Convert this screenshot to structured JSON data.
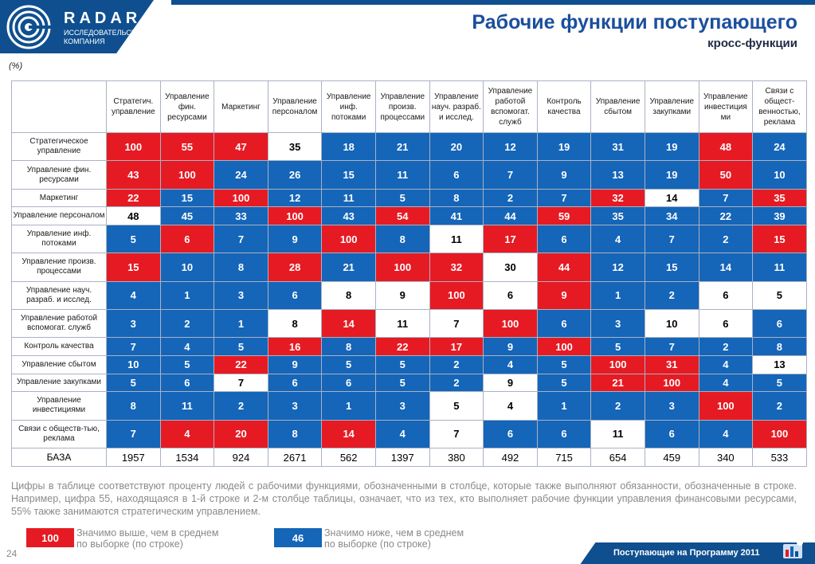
{
  "brand": {
    "name": "RADAR",
    "subtitle_line1": "ИССЛЕДОВАТЕЛЬСКАЯ",
    "subtitle_line2": "КОМПАНИЯ"
  },
  "title": "Рабочие функции поступающего",
  "subtitle": "кросс-функции",
  "unit": "(%)",
  "colors": {
    "above": "#e61a23",
    "below": "#1565b8",
    "neutral": "#ffffff",
    "brand": "#0f4f8f"
  },
  "columns": [
    "Стратегич. управление",
    "Управление фин. ресурсами",
    "Маркетинг",
    "Управление персоналом",
    "Управление инф. потоками",
    "Управление произв. процессами",
    "Управление науч. разраб. и исслед.",
    "Управление работой вспомогат. служб",
    "Контроль качества",
    "Управление сбытом",
    "Управление закупками",
    "Управление инвестиция ми",
    "Связи с общест-венностью, реклама"
  ],
  "rows": [
    {
      "label": "Стратегическое управление",
      "values": [
        "100",
        "55",
        "47",
        "35",
        "18",
        "21",
        "20",
        "12",
        "19",
        "31",
        "19",
        "48",
        "24"
      ],
      "status": [
        "h",
        "h",
        "h",
        "n",
        "l",
        "l",
        "l",
        "l",
        "l",
        "l",
        "l",
        "h",
        "l"
      ]
    },
    {
      "label": "Управление фин. ресурсами",
      "values": [
        "43",
        "100",
        "24",
        "26",
        "15",
        "11",
        "6",
        "7",
        "9",
        "13",
        "19",
        "50",
        "10"
      ],
      "status": [
        "h",
        "h",
        "l",
        "l",
        "l",
        "l",
        "l",
        "l",
        "l",
        "l",
        "l",
        "h",
        "l"
      ]
    },
    {
      "label": "Маркетинг",
      "values": [
        "22",
        "15",
        "100",
        "12",
        "11",
        "5",
        "8",
        "2",
        "7",
        "32",
        "14",
        "7",
        "35"
      ],
      "status": [
        "h",
        "l",
        "h",
        "l",
        "l",
        "l",
        "l",
        "l",
        "l",
        "h",
        "n",
        "l",
        "h"
      ]
    },
    {
      "label": "Управление персоналом",
      "values": [
        "48",
        "45",
        "33",
        "100",
        "43",
        "54",
        "41",
        "44",
        "59",
        "35",
        "34",
        "22",
        "39"
      ],
      "status": [
        "n",
        "l",
        "l",
        "h",
        "l",
        "h",
        "l",
        "l",
        "h",
        "l",
        "l",
        "l",
        "l"
      ]
    },
    {
      "label": "Управление инф. потоками",
      "values": [
        "5",
        "6",
        "7",
        "9",
        "100",
        "8",
        "11",
        "17",
        "6",
        "4",
        "7",
        "2",
        "15"
      ],
      "status": [
        "l",
        "h",
        "l",
        "l",
        "h",
        "l",
        "n",
        "h",
        "l",
        "l",
        "l",
        "l",
        "h"
      ]
    },
    {
      "label": "Управление произв. процессами",
      "values": [
        "15",
        "10",
        "8",
        "28",
        "21",
        "100",
        "32",
        "30",
        "44",
        "12",
        "15",
        "14",
        "11"
      ],
      "status": [
        "h",
        "l",
        "l",
        "h",
        "l",
        "h",
        "h",
        "n",
        "h",
        "l",
        "l",
        "l",
        "l"
      ]
    },
    {
      "label": "Управление науч. разраб. и исслед.",
      "values": [
        "4",
        "1",
        "3",
        "6",
        "8",
        "9",
        "100",
        "6",
        "9",
        "1",
        "2",
        "6",
        "5"
      ],
      "status": [
        "l",
        "l",
        "l",
        "l",
        "n",
        "n",
        "h",
        "n",
        "h",
        "l",
        "l",
        "n",
        "n"
      ]
    },
    {
      "label": "Управление работой вспомогат. служб",
      "values": [
        "3",
        "2",
        "1",
        "8",
        "14",
        "11",
        "7",
        "100",
        "6",
        "3",
        "10",
        "6",
        "6"
      ],
      "status": [
        "l",
        "l",
        "l",
        "n",
        "h",
        "n",
        "n",
        "h",
        "l",
        "l",
        "n",
        "n",
        "l"
      ]
    },
    {
      "label": "Контроль качества",
      "values": [
        "7",
        "4",
        "5",
        "16",
        "8",
        "22",
        "17",
        "9",
        "100",
        "5",
        "7",
        "2",
        "8"
      ],
      "status": [
        "l",
        "l",
        "l",
        "h",
        "l",
        "h",
        "h",
        "l",
        "h",
        "l",
        "l",
        "l",
        "l"
      ]
    },
    {
      "label": "Управление сбытом",
      "values": [
        "10",
        "5",
        "22",
        "9",
        "5",
        "5",
        "2",
        "4",
        "5",
        "100",
        "31",
        "4",
        "13"
      ],
      "status": [
        "l",
        "l",
        "h",
        "l",
        "l",
        "l",
        "l",
        "l",
        "l",
        "h",
        "h",
        "l",
        "n"
      ]
    },
    {
      "label": "Управление закупками",
      "values": [
        "5",
        "6",
        "7",
        "6",
        "6",
        "5",
        "2",
        "9",
        "5",
        "21",
        "100",
        "4",
        "5"
      ],
      "status": [
        "l",
        "l",
        "n",
        "l",
        "l",
        "l",
        "l",
        "n",
        "l",
        "h",
        "h",
        "l",
        "l"
      ]
    },
    {
      "label": "Управление инвестициями",
      "values": [
        "8",
        "11",
        "2",
        "3",
        "1",
        "3",
        "5",
        "4",
        "1",
        "2",
        "3",
        "100",
        "2"
      ],
      "status": [
        "l",
        "l",
        "l",
        "l",
        "l",
        "l",
        "n",
        "n",
        "l",
        "l",
        "l",
        "h",
        "l"
      ]
    },
    {
      "label": "Связи с обществ-тью, реклама",
      "values": [
        "7",
        "4",
        "20",
        "8",
        "14",
        "4",
        "7",
        "6",
        "6",
        "11",
        "6",
        "4",
        "100"
      ],
      "status": [
        "l",
        "h",
        "h",
        "l",
        "h",
        "l",
        "n",
        "l",
        "l",
        "n",
        "l",
        "l",
        "h"
      ]
    }
  ],
  "base": {
    "label": "БАЗА",
    "values": [
      "1957",
      "1534",
      "924",
      "2671",
      "562",
      "1397",
      "380",
      "492",
      "715",
      "654",
      "459",
      "340",
      "533"
    ]
  },
  "footnote": "Цифры в таблице соответствуют проценту людей с рабочими функциями, обозначенными в столбце, которые также выполняют обязанности, обозначенные в строке. Например, цифра 55, находящаяся в 1-й строке и 2-м столбце таблицы, означает, что из тех, кто выполняет рабочие функции управления финансовыми ресурсами, 55% также занимаются стратегическим управлением.",
  "legend": {
    "above_value": "100",
    "above_line1": "Значимо выше, чем в среднем",
    "above_line2": "по выборке (по строке)",
    "below_value": "46",
    "below_line1": "Значимо ниже, чем в среднем",
    "below_line2": "по выборке (по строке)"
  },
  "page_number": "24",
  "footer": "Поступающие на Программу 2011"
}
